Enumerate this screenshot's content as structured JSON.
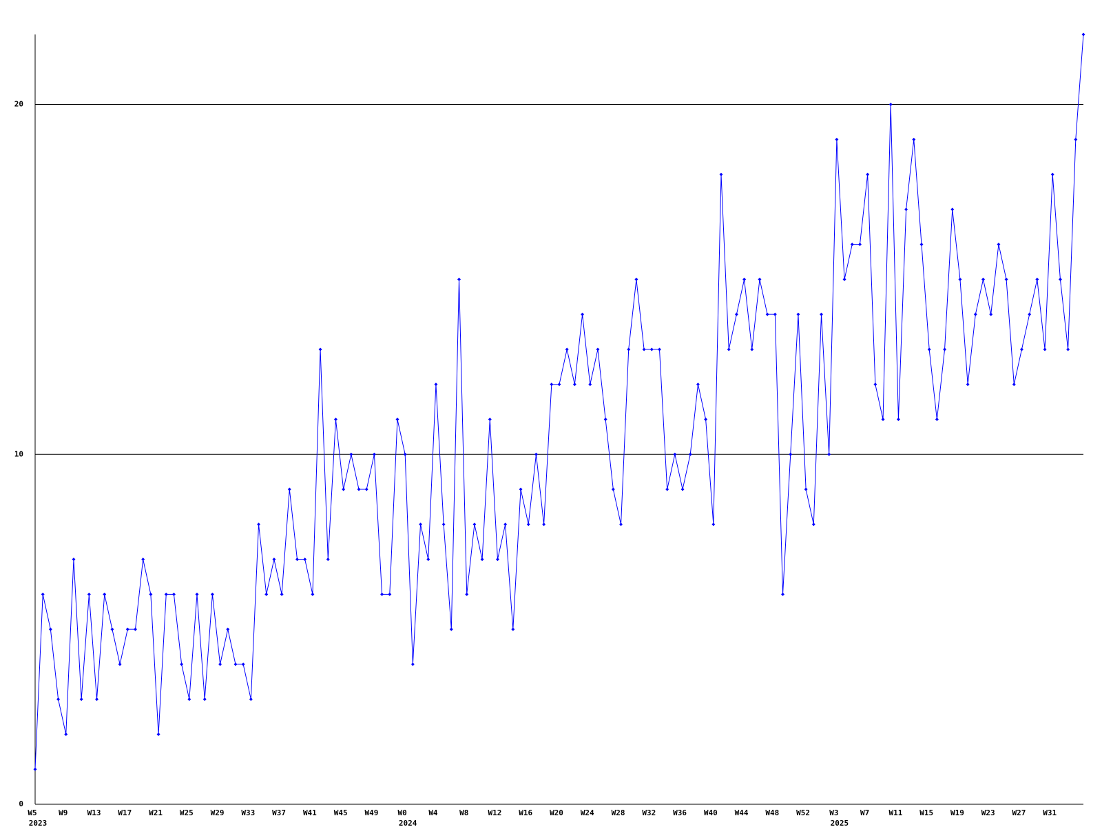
{
  "chart_data": {
    "type": "line",
    "color": "#0000ff",
    "grid": true,
    "ylim": [
      0,
      22
    ],
    "yticks": [
      0,
      10,
      20
    ],
    "categories": [
      "W5",
      null,
      null,
      null,
      "W9",
      null,
      null,
      null,
      "W13",
      null,
      null,
      null,
      "W17",
      null,
      null,
      null,
      "W21",
      null,
      null,
      null,
      "W25",
      null,
      null,
      null,
      "W29",
      null,
      null,
      null,
      "W33",
      null,
      null,
      null,
      "W37",
      null,
      null,
      null,
      "W41",
      null,
      null,
      null,
      "W45",
      null,
      null,
      null,
      "W49",
      null,
      null,
      null,
      "W0",
      null,
      null,
      null,
      "W4",
      null,
      null,
      null,
      "W8",
      null,
      null,
      null,
      "W12",
      null,
      null,
      null,
      "W16",
      null,
      null,
      null,
      "W20",
      null,
      null,
      null,
      "W24",
      null,
      null,
      null,
      "W28",
      null,
      null,
      null,
      "W32",
      null,
      null,
      null,
      "W36",
      null,
      null,
      null,
      "W40",
      null,
      null,
      null,
      "W44",
      null,
      null,
      null,
      "W48",
      null,
      null,
      null,
      "W52",
      null,
      null,
      null,
      "W3",
      null,
      null,
      null,
      "W7",
      null,
      null,
      null,
      "W11",
      null,
      null,
      null,
      "W15",
      null,
      null,
      null,
      "W19",
      null,
      null,
      null,
      "W23",
      null,
      null,
      null,
      "W27",
      null,
      null,
      null,
      "W31",
      null,
      null,
      null,
      null
    ],
    "category_years": [
      "2023",
      null,
      null,
      null,
      null,
      null,
      null,
      null,
      null,
      null,
      null,
      null,
      null,
      null,
      null,
      null,
      null,
      null,
      null,
      null,
      null,
      null,
      null,
      null,
      null,
      null,
      null,
      null,
      null,
      null,
      null,
      null,
      null,
      null,
      null,
      null,
      null,
      null,
      null,
      null,
      null,
      null,
      null,
      null,
      null,
      null,
      null,
      null,
      "2024",
      null,
      null,
      null,
      null,
      null,
      null,
      null,
      null,
      null,
      null,
      null,
      null,
      null,
      null,
      null,
      null,
      null,
      null,
      null,
      null,
      null,
      null,
      null,
      null,
      null,
      null,
      null,
      null,
      null,
      null,
      null,
      null,
      null,
      null,
      null,
      null,
      null,
      null,
      null,
      null,
      null,
      null,
      null,
      null,
      null,
      null,
      null,
      null,
      null,
      null,
      null,
      null,
      null,
      null,
      null,
      "2025",
      null,
      null,
      null,
      null,
      null,
      null,
      null,
      null,
      null,
      null,
      null,
      null,
      null,
      null,
      null,
      null,
      null,
      null,
      null,
      null,
      null,
      null,
      null,
      null,
      null,
      null,
      null,
      null,
      null,
      null,
      null,
      null
    ],
    "values": [
      1,
      6,
      5,
      3,
      2,
      7,
      3,
      6,
      3,
      6,
      5,
      4,
      5,
      5,
      7,
      6,
      2,
      6,
      6,
      4,
      3,
      6,
      3,
      6,
      4,
      5,
      4,
      4,
      3,
      8,
      6,
      7,
      6,
      9,
      7,
      7,
      6,
      13,
      7,
      11,
      9,
      10,
      9,
      9,
      10,
      6,
      6,
      11,
      10,
      4,
      8,
      7,
      12,
      8,
      5,
      15,
      6,
      8,
      7,
      11,
      7,
      8,
      5,
      9,
      8,
      10,
      8,
      12,
      12,
      13,
      12,
      14,
      12,
      13,
      11,
      9,
      8,
      13,
      15,
      13,
      13,
      13,
      9,
      10,
      9,
      10,
      12,
      11,
      8,
      18,
      13,
      14,
      15,
      13,
      15,
      14,
      14,
      6,
      10,
      14,
      9,
      8,
      14,
      10,
      19,
      15,
      16,
      16,
      18,
      12,
      11,
      20,
      11,
      17,
      19,
      16,
      13,
      11,
      13,
      17,
      15,
      12,
      14,
      15,
      14,
      16,
      15,
      12,
      13,
      14,
      15,
      13,
      18,
      15,
      13,
      19,
      22
    ]
  }
}
